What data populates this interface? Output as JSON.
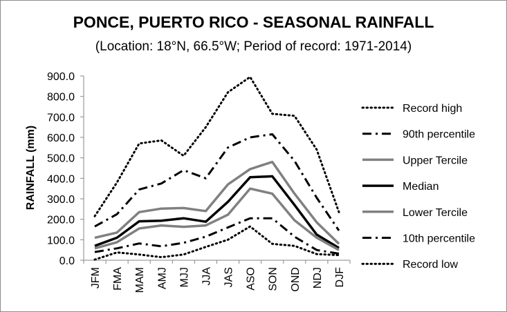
{
  "chart_data": {
    "type": "line",
    "title": "PONCE, PUERTO RICO - SEASONAL RAINFALL",
    "subtitle": "(Location: 18°N, 66.5°W; Period of record: 1971-2014)",
    "xlabel": "",
    "ylabel": "RAINFALL (mm)",
    "ylim": [
      0,
      900
    ],
    "yticks": [
      "0.0",
      "100.0",
      "200.0",
      "300.0",
      "400.0",
      "500.0",
      "600.0",
      "700.0",
      "800.0",
      "900.0"
    ],
    "categories": [
      "JFM",
      "FMA",
      "MAM",
      "AMJ",
      "MJJ",
      "JJA",
      "JAS",
      "ASO",
      "SON",
      "OND",
      "NDJ",
      "DJF"
    ],
    "grid": false,
    "legend_position": "right",
    "series": [
      {
        "name": "Record high",
        "style": "dotted",
        "color": "#000000",
        "values": [
          215,
          380,
          570,
          585,
          510,
          650,
          820,
          895,
          715,
          705,
          540,
          235
        ]
      },
      {
        "name": "90th percentile",
        "style": "dashdot",
        "color": "#000000",
        "values": [
          165,
          225,
          345,
          375,
          440,
          400,
          550,
          600,
          615,
          485,
          305,
          145
        ]
      },
      {
        "name": "Upper Tercile",
        "style": "solid",
        "color": "#808080",
        "values": [
          110,
          135,
          235,
          252,
          255,
          240,
          370,
          445,
          480,
          325,
          185,
          80
        ]
      },
      {
        "name": "Median",
        "style": "solid-thick",
        "color": "#000000",
        "values": [
          70,
          110,
          190,
          193,
          205,
          188,
          285,
          405,
          410,
          270,
          125,
          60
        ]
      },
      {
        "name": "Lower Tercile",
        "style": "solid",
        "color": "#808080",
        "values": [
          58,
          88,
          155,
          170,
          163,
          170,
          222,
          350,
          325,
          195,
          110,
          50
        ]
      },
      {
        "name": "10th percentile",
        "style": "dashdot",
        "color": "#000000",
        "values": [
          40,
          58,
          82,
          68,
          85,
          115,
          160,
          205,
          205,
          115,
          50,
          32
        ]
      },
      {
        "name": "Record low",
        "style": "dotted",
        "color": "#000000",
        "values": [
          3,
          38,
          28,
          15,
          28,
          65,
          100,
          165,
          80,
          70,
          30,
          25
        ]
      }
    ]
  }
}
